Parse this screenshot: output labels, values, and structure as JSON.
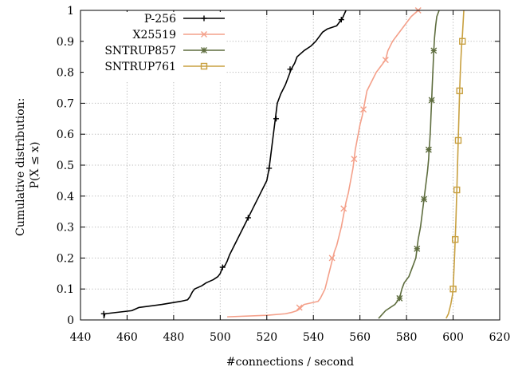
{
  "chart_data": {
    "type": "line",
    "title": "",
    "xlabel": "#connections / second",
    "ylabel_lines": [
      "Cumulative distribution:",
      "P(X ≤ x)"
    ],
    "xlim": [
      440,
      620
    ],
    "ylim": [
      0,
      1
    ],
    "xticks": [
      440,
      460,
      480,
      500,
      520,
      540,
      560,
      580,
      600,
      620
    ],
    "xtick_labels": [
      "440",
      "460",
      "480",
      "500",
      "520",
      "540",
      "560",
      "580",
      "600",
      "620"
    ],
    "yticks": [
      0,
      0.1,
      0.2,
      0.3,
      0.4,
      0.5,
      0.6,
      0.7,
      0.8,
      0.9,
      1
    ],
    "ytick_labels": [
      "0",
      "0.1",
      "0.2",
      "0.3",
      "0.4",
      "0.5",
      "0.6",
      "0.7",
      "0.8",
      "0.9",
      "1"
    ],
    "grid": true,
    "legend_position": "top-left",
    "series": [
      {
        "name": "P-256",
        "color": "#000000",
        "marker": "plus",
        "points": [
          [
            450,
            0.005
          ],
          [
            450.5,
            0.02
          ],
          [
            462,
            0.03
          ],
          [
            465,
            0.04
          ],
          [
            475,
            0.05
          ],
          [
            483,
            0.06
          ],
          [
            486,
            0.065
          ],
          [
            487,
            0.075
          ],
          [
            488,
            0.09
          ],
          [
            489,
            0.1
          ],
          [
            492,
            0.11
          ],
          [
            494,
            0.12
          ],
          [
            497,
            0.13
          ],
          [
            499,
            0.14
          ],
          [
            500,
            0.15
          ],
          [
            501,
            0.17
          ],
          [
            502,
            0.175
          ],
          [
            503,
            0.19
          ],
          [
            504,
            0.21
          ],
          [
            506,
            0.24
          ],
          [
            508,
            0.27
          ],
          [
            510,
            0.3
          ],
          [
            512,
            0.33
          ],
          [
            514,
            0.36
          ],
          [
            516,
            0.39
          ],
          [
            518,
            0.42
          ],
          [
            520,
            0.45
          ],
          [
            521,
            0.49
          ],
          [
            521.5,
            0.52
          ],
          [
            522,
            0.55
          ],
          [
            522.5,
            0.58
          ],
          [
            523,
            0.61
          ],
          [
            523.5,
            0.64
          ],
          [
            524,
            0.67
          ],
          [
            524.5,
            0.7
          ],
          [
            526,
            0.73
          ],
          [
            528,
            0.76
          ],
          [
            529,
            0.78
          ],
          [
            530,
            0.8
          ],
          [
            530.5,
            0.81
          ],
          [
            532,
            0.83
          ],
          [
            533,
            0.85
          ],
          [
            536,
            0.87
          ],
          [
            539,
            0.885
          ],
          [
            541,
            0.9
          ],
          [
            542,
            0.91
          ],
          [
            544,
            0.93
          ],
          [
            546,
            0.94
          ],
          [
            550,
            0.95
          ],
          [
            552,
            0.97
          ],
          [
            552.5,
            0.975
          ],
          [
            554,
            1.0
          ]
        ],
        "marker_points": [
          [
            450,
            0.02
          ],
          [
            501,
            0.17
          ],
          [
            512,
            0.33
          ],
          [
            521,
            0.49
          ],
          [
            524,
            0.65
          ],
          [
            530,
            0.81
          ],
          [
            552,
            0.97
          ]
        ]
      },
      {
        "name": "X25519",
        "color": "#f4a08a",
        "marker": "cross",
        "points": [
          [
            503,
            0.01
          ],
          [
            520,
            0.015
          ],
          [
            528,
            0.02
          ],
          [
            531,
            0.025
          ],
          [
            533,
            0.03
          ],
          [
            534,
            0.035
          ],
          [
            536,
            0.05
          ],
          [
            542,
            0.06
          ],
          [
            543,
            0.07
          ],
          [
            545,
            0.1
          ],
          [
            546,
            0.13
          ],
          [
            547,
            0.16
          ],
          [
            548,
            0.19
          ],
          [
            549,
            0.22
          ],
          [
            550,
            0.24
          ],
          [
            551,
            0.27
          ],
          [
            552,
            0.3
          ],
          [
            553,
            0.34
          ],
          [
            553.5,
            0.36
          ],
          [
            554,
            0.38
          ],
          [
            555,
            0.41
          ],
          [
            556,
            0.45
          ],
          [
            557,
            0.49
          ],
          [
            557.5,
            0.52
          ],
          [
            558,
            0.55
          ],
          [
            559,
            0.59
          ],
          [
            560,
            0.63
          ],
          [
            561,
            0.66
          ],
          [
            561.5,
            0.68
          ],
          [
            562,
            0.7
          ],
          [
            563,
            0.74
          ],
          [
            565,
            0.77
          ],
          [
            567,
            0.8
          ],
          [
            569,
            0.82
          ],
          [
            571,
            0.84
          ],
          [
            572,
            0.87
          ],
          [
            574,
            0.9
          ],
          [
            576,
            0.92
          ],
          [
            578,
            0.94
          ],
          [
            580,
            0.96
          ],
          [
            582,
            0.98
          ],
          [
            585,
            1.0
          ]
        ],
        "marker_points": [
          [
            534,
            0.04
          ],
          [
            548,
            0.2
          ],
          [
            553,
            0.36
          ],
          [
            557.5,
            0.52
          ],
          [
            561.5,
            0.68
          ],
          [
            571,
            0.84
          ],
          [
            585,
            1.0
          ]
        ]
      },
      {
        "name": "SNTRUP857",
        "color": "#5e6d3e",
        "marker": "star",
        "points": [
          [
            568,
            0.005
          ],
          [
            571,
            0.03
          ],
          [
            575,
            0.05
          ],
          [
            577,
            0.07
          ],
          [
            578,
            0.1
          ],
          [
            579,
            0.12
          ],
          [
            581,
            0.14
          ],
          [
            582,
            0.16
          ],
          [
            583,
            0.18
          ],
          [
            584,
            0.2
          ],
          [
            584.5,
            0.23
          ],
          [
            585,
            0.26
          ],
          [
            586,
            0.3
          ],
          [
            586.5,
            0.33
          ],
          [
            587,
            0.36
          ],
          [
            587.5,
            0.39
          ],
          [
            588,
            0.42
          ],
          [
            588.5,
            0.45
          ],
          [
            589,
            0.48
          ],
          [
            589.5,
            0.52
          ],
          [
            589.7,
            0.55
          ],
          [
            590,
            0.58
          ],
          [
            590.3,
            0.62
          ],
          [
            590.5,
            0.66
          ],
          [
            590.8,
            0.71
          ],
          [
            591,
            0.75
          ],
          [
            591.3,
            0.8
          ],
          [
            591.7,
            0.87
          ],
          [
            592,
            0.91
          ],
          [
            592.5,
            0.95
          ],
          [
            593,
            0.98
          ],
          [
            594,
            1.0
          ]
        ],
        "marker_points": [
          [
            577,
            0.07
          ],
          [
            584.5,
            0.23
          ],
          [
            587.5,
            0.39
          ],
          [
            589.5,
            0.55
          ],
          [
            590.8,
            0.71
          ],
          [
            591.7,
            0.87
          ]
        ]
      },
      {
        "name": "SNTRUP761",
        "color": "#c8a040",
        "marker": "square",
        "points": [
          [
            597,
            0.005
          ],
          [
            598,
            0.02
          ],
          [
            599,
            0.05
          ],
          [
            599.7,
            0.08
          ],
          [
            600,
            0.1
          ],
          [
            600.3,
            0.15
          ],
          [
            600.6,
            0.2
          ],
          [
            600.9,
            0.26
          ],
          [
            601.2,
            0.32
          ],
          [
            601.6,
            0.42
          ],
          [
            601.9,
            0.5
          ],
          [
            602.2,
            0.58
          ],
          [
            602.5,
            0.66
          ],
          [
            602.8,
            0.74
          ],
          [
            603.2,
            0.82
          ],
          [
            603.6,
            0.88
          ],
          [
            604,
            0.92
          ],
          [
            604.3,
            0.96
          ],
          [
            604.6,
            1.0
          ]
        ],
        "marker_points": [
          [
            600,
            0.1
          ],
          [
            600.9,
            0.26
          ],
          [
            601.6,
            0.42
          ],
          [
            602.2,
            0.58
          ],
          [
            602.8,
            0.74
          ],
          [
            604,
            0.9
          ]
        ]
      }
    ]
  }
}
